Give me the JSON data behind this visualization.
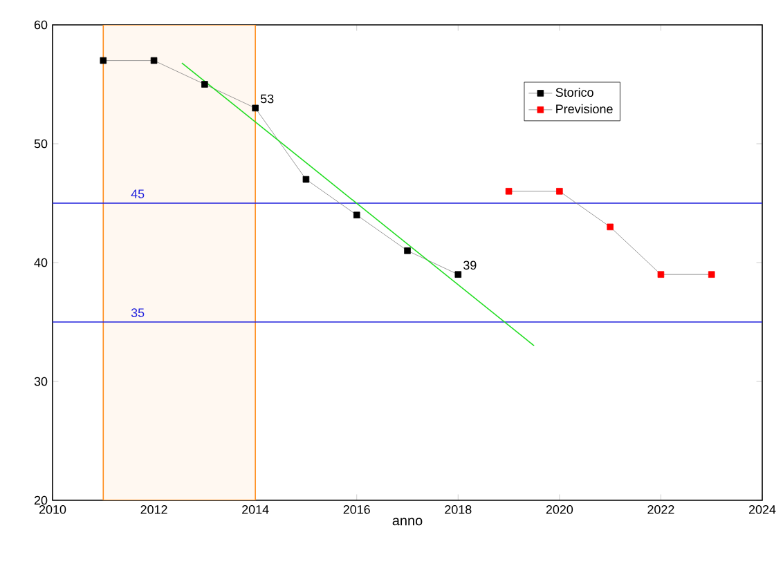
{
  "chart_data": {
    "type": "line",
    "xlabel": "anno",
    "series": [
      {
        "name": "Storico",
        "color": "#000000",
        "x": [
          2011,
          2012,
          2013,
          2014,
          2015,
          2016,
          2017,
          2018
        ],
        "values": [
          57,
          57,
          55,
          53,
          47,
          44,
          41,
          39
        ]
      },
      {
        "name": "Previsione",
        "color": "#ff0000",
        "x": [
          2019,
          2020,
          2021,
          2022,
          2023
        ],
        "values": [
          46,
          46,
          43,
          39,
          39
        ]
      },
      {
        "color": "#22dd22",
        "marker": "none",
        "x": [
          2012.55,
          2019.5
        ],
        "values": [
          56.8,
          33.0
        ]
      }
    ],
    "xlim": [
      2010,
      2024
    ],
    "xticks": [
      2010,
      2012,
      2014,
      2016,
      2018,
      2020,
      2022,
      2024
    ],
    "ylim": [
      20,
      60
    ],
    "yticks": [
      20,
      30,
      40,
      50,
      60
    ],
    "marker": "square",
    "legend": "top right",
    "ref_lines": [
      {
        "axis": "y",
        "value": 45,
        "label": "45",
        "color": "#2222dd"
      },
      {
        "axis": "y",
        "value": 35,
        "label": "35",
        "color": "#2222dd"
      }
    ],
    "bands": [
      {
        "axis": "x",
        "from": 2011,
        "to": 2014,
        "color": "#ff8c1a"
      }
    ],
    "annotations": [
      {
        "text": "53",
        "x": 2014,
        "y": 53
      },
      {
        "text": "39",
        "x": 2018,
        "y": 39
      }
    ]
  }
}
